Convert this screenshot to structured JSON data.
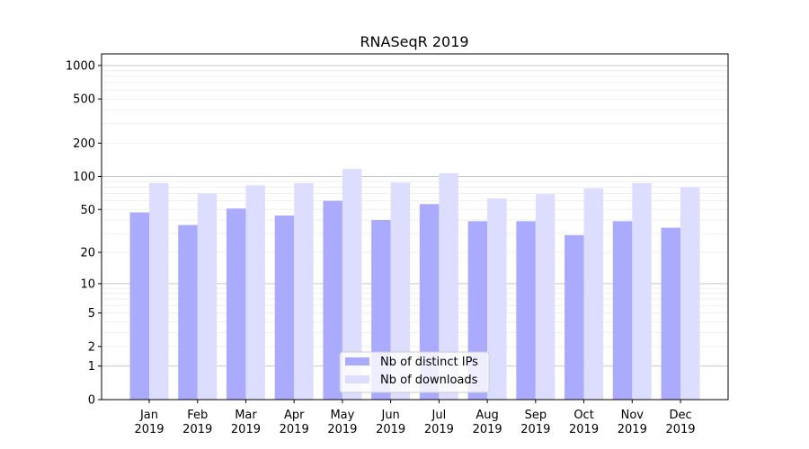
{
  "chart_data": {
    "type": "bar",
    "title": "RNASeqR 2019",
    "xlabel": "",
    "ylabel": "",
    "yscale": "log10(1+y)",
    "ylim": [
      0,
      1300
    ],
    "yticks": [
      0,
      1,
      2,
      5,
      10,
      20,
      50,
      100,
      200,
      500,
      1000
    ],
    "grid": true,
    "legend_position": "lower-center",
    "categories": [
      "Jan\n2019",
      "Feb\n2019",
      "Mar\n2019",
      "Apr\n2019",
      "May\n2019",
      "Jun\n2019",
      "Jul\n2019",
      "Aug\n2019",
      "Sep\n2019",
      "Oct\n2019",
      "Nov\n2019",
      "Dec\n2019"
    ],
    "series": [
      {
        "name": "Nb of distinct IPs",
        "color": "#aaaaff",
        "values": [
          47,
          36,
          51,
          44,
          60,
          40,
          56,
          39,
          39,
          29,
          39,
          34
        ]
      },
      {
        "name": "Nb of downloads",
        "color": "#ddddff",
        "values": [
          87,
          70,
          83,
          87,
          117,
          88,
          107,
          63,
          69,
          78,
          87,
          80
        ]
      }
    ]
  }
}
